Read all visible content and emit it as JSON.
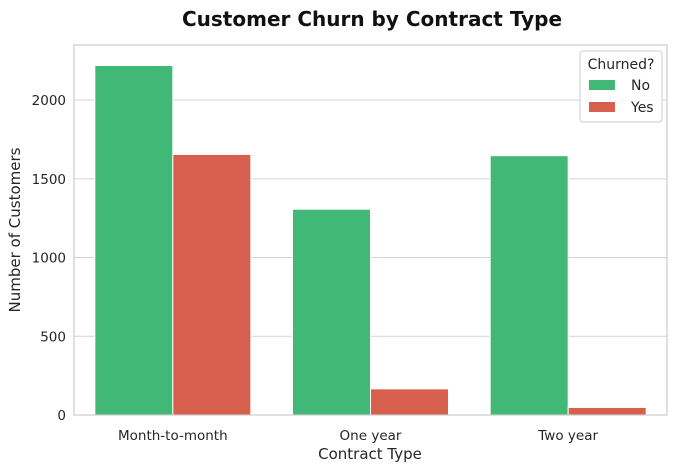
{
  "chart_data": {
    "type": "bar",
    "title": "Customer Churn by Contract Type",
    "xlabel": "Contract Type",
    "ylabel": "Number of Customers",
    "categories": [
      "Month-to-month",
      "One year",
      "Two year"
    ],
    "series": [
      {
        "name": "No",
        "color": "#41b876",
        "values": [
          2220,
          1307,
          1647
        ]
      },
      {
        "name": "Yes",
        "color": "#d65f4e",
        "values": [
          1655,
          166,
          48
        ]
      }
    ],
    "ylim": [
      0,
      2350
    ],
    "yticks": [
      0,
      500,
      1000,
      1500,
      2000
    ],
    "grid": true,
    "legend": {
      "title": "Churned?",
      "position": "top-right"
    }
  }
}
